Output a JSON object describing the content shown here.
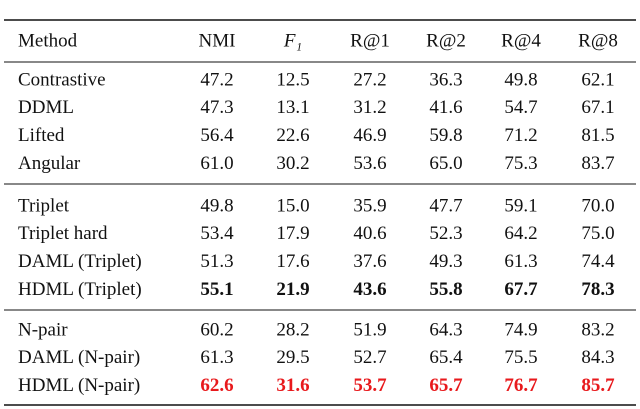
{
  "table": {
    "header": [
      "Method",
      "NMI",
      "F₁",
      "R@1",
      "R@2",
      "R@4",
      "R@8"
    ],
    "groups": [
      {
        "rows": [
          [
            "Contrastive",
            "47.2",
            "12.5",
            "27.2",
            "36.3",
            "49.8",
            "62.1"
          ],
          [
            "DDML",
            "47.3",
            "13.1",
            "31.2",
            "41.6",
            "54.7",
            "67.1"
          ],
          [
            "Lifted",
            "56.4",
            "22.6",
            "46.9",
            "59.8",
            "71.2",
            "81.5"
          ],
          [
            "Angular",
            "61.0",
            "30.2",
            "53.6",
            "65.0",
            "75.3",
            "83.7"
          ]
        ]
      },
      {
        "rows": [
          [
            "Triplet",
            "49.8",
            "15.0",
            "35.9",
            "47.7",
            "59.1",
            "70.0"
          ],
          [
            "Triplet hard",
            "53.4",
            "17.9",
            "40.6",
            "52.3",
            "64.2",
            "75.0"
          ],
          [
            "DAML (Triplet)",
            "51.3",
            "17.6",
            "37.6",
            "49.3",
            "61.3",
            "74.4"
          ],
          [
            "HDML (Triplet)",
            "55.1",
            "21.9",
            "43.6",
            "55.8",
            "67.7",
            "78.3"
          ]
        ]
      },
      {
        "rows": [
          [
            "N-pair",
            "60.2",
            "28.2",
            "51.9",
            "64.3",
            "74.9",
            "83.2"
          ],
          [
            "DAML (N-pair)",
            "61.3",
            "29.5",
            "52.7",
            "65.4",
            "75.5",
            "84.3"
          ],
          [
            "HDML (N-pair)",
            "62.6",
            "31.6",
            "53.7",
            "65.7",
            "76.7",
            "85.7"
          ]
        ]
      }
    ]
  }
}
